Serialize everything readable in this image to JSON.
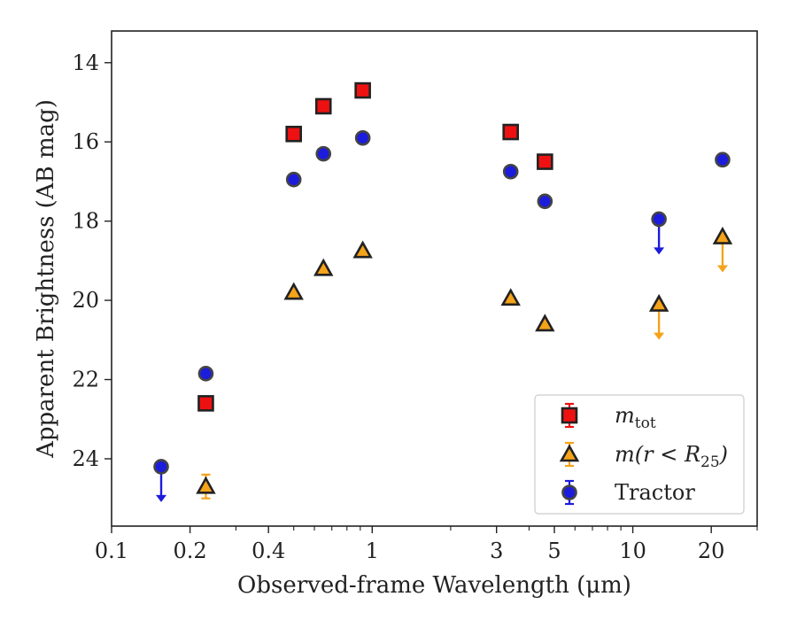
{
  "chart_data": {
    "type": "scatter",
    "xlabel": "Observed-frame Wavelength (μm)",
    "ylabel": "Apparent Brightness (AB mag)",
    "x_scale": "log",
    "xlim": [
      0.1,
      30
    ],
    "ylim": [
      25.7,
      13.2
    ],
    "y_inverted": true,
    "grid": false,
    "x_ticks": [
      {
        "value": 0.1,
        "label": "0.1"
      },
      {
        "value": 0.2,
        "label": "0.2"
      },
      {
        "value": 0.4,
        "label": "0.4"
      },
      {
        "value": 1,
        "label": "1"
      },
      {
        "value": 3,
        "label": "3"
      },
      {
        "value": 5,
        "label": "5"
      },
      {
        "value": 10,
        "label": "10"
      },
      {
        "value": 20,
        "label": "20"
      }
    ],
    "y_ticks": [
      {
        "value": 14,
        "label": "14"
      },
      {
        "value": 16,
        "label": "16"
      },
      {
        "value": 18,
        "label": "18"
      },
      {
        "value": 20,
        "label": "20"
      },
      {
        "value": 22,
        "label": "22"
      },
      {
        "value": 24,
        "label": "24"
      }
    ],
    "legend_position": "lower-right",
    "series": [
      {
        "name": "m_tot",
        "label_main": "m",
        "label_sub": "tot",
        "marker": "square",
        "color": "#ee1111",
        "edge_color": "#222222",
        "points": [
          {
            "x": 0.23,
            "y": 22.6,
            "upper_limit": false
          },
          {
            "x": 0.5,
            "y": 15.8,
            "upper_limit": false
          },
          {
            "x": 0.65,
            "y": 15.1,
            "upper_limit": false
          },
          {
            "x": 0.92,
            "y": 14.7,
            "upper_limit": false
          },
          {
            "x": 3.4,
            "y": 15.75,
            "upper_limit": false
          },
          {
            "x": 4.6,
            "y": 16.5,
            "upper_limit": false
          }
        ]
      },
      {
        "name": "m(r<R_25)",
        "label_main": "m(r < R",
        "label_sub": "25",
        "label_tail": ")",
        "marker": "triangle",
        "color": "#f5a31a",
        "edge_color": "#222222",
        "points": [
          {
            "x": 0.23,
            "y": 24.7,
            "upper_limit": false,
            "yerr": 0.3
          },
          {
            "x": 0.5,
            "y": 19.8,
            "upper_limit": false
          },
          {
            "x": 0.65,
            "y": 19.2,
            "upper_limit": false
          },
          {
            "x": 0.92,
            "y": 18.75,
            "upper_limit": false
          },
          {
            "x": 3.4,
            "y": 19.95,
            "upper_limit": false
          },
          {
            "x": 4.6,
            "y": 20.6,
            "upper_limit": false
          },
          {
            "x": 12.6,
            "y": 20.1,
            "upper_limit": true
          },
          {
            "x": 22.1,
            "y": 18.4,
            "upper_limit": true
          }
        ]
      },
      {
        "name": "Tractor",
        "label_main": "Tractor",
        "marker": "circle",
        "color": "#1c1cdd",
        "edge_color": "#444444",
        "points": [
          {
            "x": 0.155,
            "y": 24.2,
            "upper_limit": true
          },
          {
            "x": 0.23,
            "y": 21.85,
            "upper_limit": false
          },
          {
            "x": 0.5,
            "y": 16.95,
            "upper_limit": false
          },
          {
            "x": 0.65,
            "y": 16.3,
            "upper_limit": false
          },
          {
            "x": 0.92,
            "y": 15.9,
            "upper_limit": false
          },
          {
            "x": 3.4,
            "y": 16.75,
            "upper_limit": false
          },
          {
            "x": 4.6,
            "y": 17.5,
            "upper_limit": false
          },
          {
            "x": 12.6,
            "y": 17.95,
            "upper_limit": true
          },
          {
            "x": 22.1,
            "y": 16.45,
            "upper_limit": false
          }
        ]
      }
    ]
  }
}
